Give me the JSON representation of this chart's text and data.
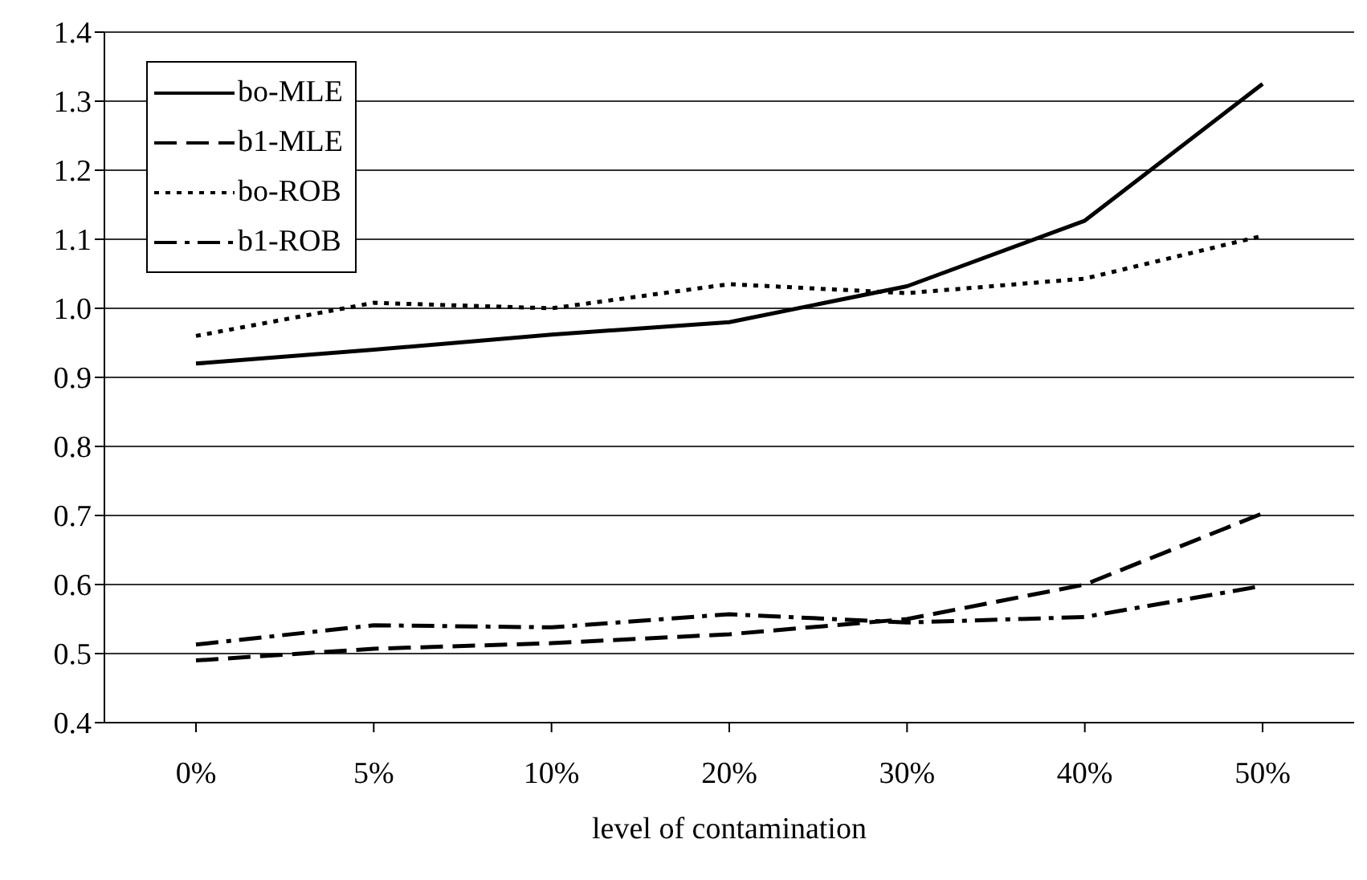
{
  "chart_data": {
    "type": "line",
    "xlabel": "level of contamination",
    "categories": [
      "0%",
      "5%",
      "10%",
      "20%",
      "30%",
      "40%",
      "50%"
    ],
    "series": [
      {
        "name": "bo-MLE",
        "color": "#000000",
        "line_style": "solid",
        "values": [
          0.92,
          0.94,
          0.962,
          0.98,
          1.032,
          1.127,
          1.325
        ]
      },
      {
        "name": "b1-MLE",
        "color": "#000000",
        "line_style": "dashed",
        "values": [
          0.49,
          0.507,
          0.515,
          0.528,
          0.55,
          0.6,
          0.703
        ]
      },
      {
        "name": "bo-ROB",
        "color": "#000000",
        "line_style": "dotted",
        "values": [
          0.96,
          1.008,
          1.0,
          1.035,
          1.022,
          1.043,
          1.105
        ]
      },
      {
        "name": "b1-ROB",
        "color": "#000000",
        "line_style": "dashdot",
        "values": [
          0.513,
          0.541,
          0.538,
          0.557,
          0.545,
          0.553,
          0.598
        ]
      }
    ],
    "ylim": [
      0.4,
      1.4
    ],
    "yticks": [
      0.4,
      0.5,
      0.6,
      0.7,
      0.8,
      0.9,
      {
        "value": 1,
        "label": "1.0"
      },
      1.1,
      1.2,
      1.3,
      1.4
    ],
    "grid": "y",
    "legend": "top left",
    "marker": "none"
  }
}
